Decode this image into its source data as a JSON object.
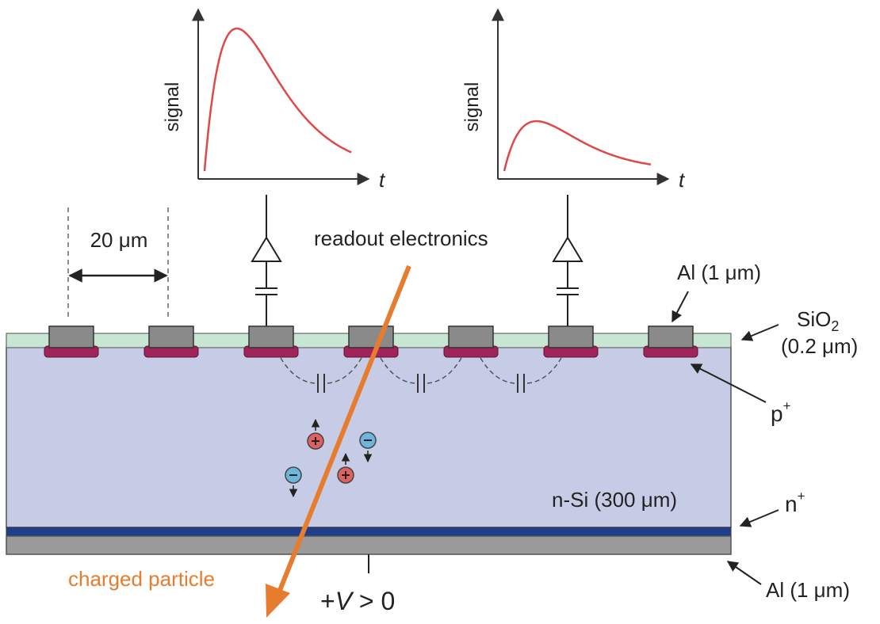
{
  "graphs": [
    {
      "ylabel": "signal",
      "xlabel": "t",
      "amplitude": 1.0
    },
    {
      "ylabel": "signal",
      "xlabel": "t",
      "amplitude": 0.35
    }
  ],
  "labels": {
    "pitch": "20 μm",
    "readout": "readout electronics",
    "al_top": "Al (1 μm)",
    "sio2": "SiO",
    "sio2_sub": "2",
    "sio2_thickness": "(0.2 μm)",
    "p_plus": "p",
    "p_plus_sup": "+",
    "n_si": "n-Si (300 μm)",
    "n_plus": "n",
    "n_plus_sup": "+",
    "al_bottom": "Al (1 μm)",
    "particle": "charged particle",
    "voltage_plus": "+",
    "voltage_v": "V",
    "voltage_rest": " > 0"
  },
  "colors": {
    "bulk": "#c6cce6",
    "oxide": "#c8e6d4",
    "strip": "#8a8a8a",
    "implant": "#a0245a",
    "n_plus_layer": "#1f3f8c",
    "backplane": "#9a9a9a",
    "signal_curve": "#e04848",
    "particle_track": "#e87c2e",
    "hole": "#e06060",
    "electron": "#6cb6dc"
  }
}
